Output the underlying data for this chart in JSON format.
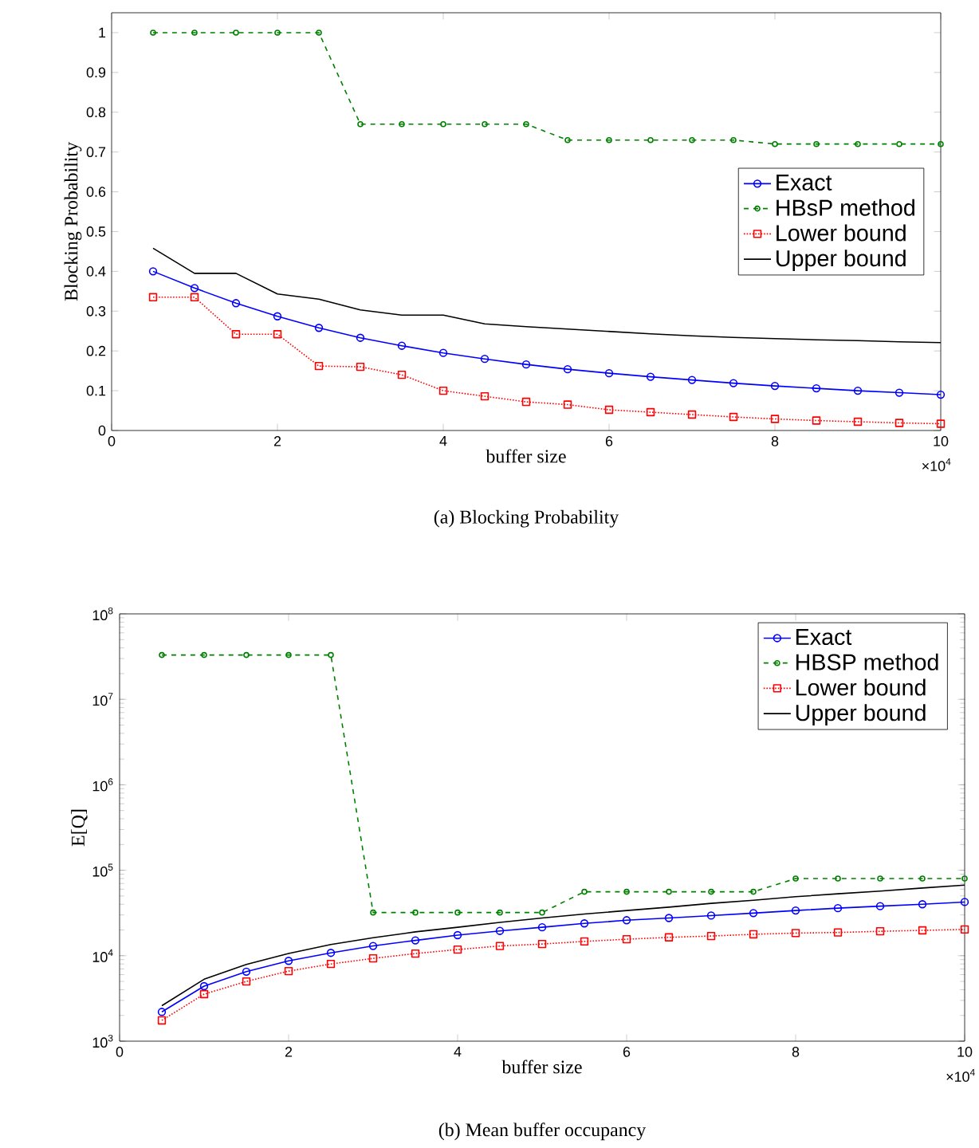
{
  "chart_data": [
    {
      "type": "line",
      "title": "(a) Blocking Probability",
      "xlabel": "buffer size",
      "ylabel": "Blocking Probability",
      "annotations": [
        "×10$^{4}$"
      ],
      "x": [
        0.5,
        1,
        1.5,
        2,
        2.5,
        3,
        3.5,
        4,
        4.5,
        5,
        5.5,
        6,
        6.5,
        7,
        7.5,
        8,
        8.5,
        9,
        9.5,
        10
      ],
      "xlim": [
        0,
        10
      ],
      "xticks": [
        0,
        2,
        4,
        6,
        8,
        10
      ],
      "ylim": [
        0,
        1.05
      ],
      "yticks": [
        0,
        0.1,
        0.2,
        0.3,
        0.4,
        0.5,
        0.6,
        0.7,
        0.8,
        0.9,
        1
      ],
      "legend": "right",
      "series": [
        {
          "name": "Exact",
          "color": "#0000ff",
          "marker": "circle",
          "line_style": "solid",
          "values": [
            0.4,
            0.358,
            0.32,
            0.287,
            0.258,
            0.233,
            0.213,
            0.195,
            0.18,
            0.166,
            0.154,
            0.144,
            0.135,
            0.127,
            0.119,
            0.112,
            0.106,
            0.1,
            0.095,
            0.09
          ]
        },
        {
          "name": "HBsP method",
          "color": "#008000",
          "marker": "circle",
          "line_style": "dashed",
          "values": [
            1,
            1,
            1,
            1,
            1,
            0.77,
            0.77,
            0.77,
            0.77,
            0.77,
            0.73,
            0.73,
            0.73,
            0.73,
            0.73,
            0.72,
            0.72,
            0.72,
            0.72,
            0.72
          ]
        },
        {
          "name": "Lower bound",
          "color": "#ff0000",
          "marker": "square",
          "line_style": "dotted",
          "values": [
            0.335,
            0.335,
            0.242,
            0.242,
            0.162,
            0.16,
            0.14,
            0.1,
            0.086,
            0.072,
            0.065,
            0.052,
            0.046,
            0.04,
            0.034,
            0.029,
            0.025,
            0.022,
            0.019,
            0.017
          ]
        },
        {
          "name": "Upper bound",
          "color": "#000000",
          "marker": "none",
          "line_style": "solid",
          "values": [
            0.458,
            0.395,
            0.395,
            0.343,
            0.33,
            0.303,
            0.29,
            0.29,
            0.268,
            0.261,
            0.255,
            0.249,
            0.243,
            0.238,
            0.234,
            0.231,
            0.228,
            0.226,
            0.223,
            0.221
          ]
        }
      ]
    },
    {
      "type": "line",
      "title": "(b) Mean buffer occupancy",
      "xlabel": "buffer size",
      "ylabel": "E[Q]",
      "annotations": [
        "×10$^{4}$"
      ],
      "log": "y",
      "x": [
        0.5,
        1,
        1.5,
        2,
        2.5,
        3,
        3.5,
        4,
        4.5,
        5,
        5.5,
        6,
        6.5,
        7,
        7.5,
        8,
        8.5,
        9,
        9.5,
        10
      ],
      "xlim": [
        0,
        10
      ],
      "xticks": [
        0,
        2,
        4,
        6,
        8,
        10
      ],
      "ylim": [
        1000,
        100000000
      ],
      "yticks": [
        {
          "value": 1000,
          "label": "10$^{3}$"
        },
        {
          "value": 10000,
          "label": "10$^{4}$"
        },
        {
          "value": 100000,
          "label": "10$^{5}$"
        },
        {
          "value": 1000000,
          "label": "10$^{6}$"
        },
        {
          "value": 10000000,
          "label": "10$^{7}$"
        },
        {
          "value": 100000000,
          "label": "10$^{8}$"
        }
      ],
      "legend": "top right",
      "series": [
        {
          "name": "Exact",
          "color": "#0000ff",
          "marker": "circle",
          "line_style": "solid",
          "values": [
            2200,
            4400,
            6500,
            8700,
            10800,
            13000,
            15100,
            17400,
            19500,
            21500,
            23900,
            26000,
            27600,
            29500,
            31500,
            33800,
            36000,
            38000,
            40000,
            42500
          ]
        },
        {
          "name": "HBSP method",
          "color": "#008000",
          "marker": "circle",
          "line_style": "dashed",
          "values": [
            33000000,
            33000000,
            33000000,
            33000000,
            33000000,
            32000,
            32000,
            32000,
            32000,
            32000,
            56000,
            56000,
            56000,
            56000,
            56000,
            80000,
            80000,
            80000,
            80000,
            80000
          ]
        },
        {
          "name": "Lower bound",
          "color": "#ff0000",
          "marker": "square",
          "line_style": "dotted",
          "values": [
            1750,
            3550,
            5000,
            6600,
            8000,
            9300,
            10600,
            11800,
            13000,
            13700,
            14700,
            15600,
            16400,
            17000,
            17800,
            18400,
            18700,
            19300,
            19800,
            20300
          ]
        },
        {
          "name": "Upper bound",
          "color": "#000000",
          "marker": "none",
          "line_style": "solid",
          "values": [
            2600,
            5300,
            7900,
            10600,
            13500,
            16200,
            19000,
            21500,
            24500,
            27600,
            30700,
            33800,
            37000,
            41000,
            44500,
            49000,
            53000,
            57000,
            62000,
            67000
          ]
        }
      ]
    }
  ]
}
